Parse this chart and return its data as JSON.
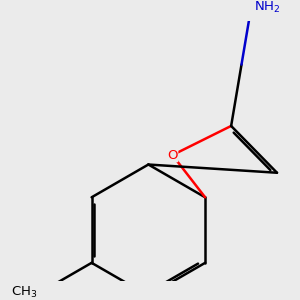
{
  "background_color": "#ebebeb",
  "bond_color": "#000000",
  "oxygen_color": "#ff0000",
  "nitrogen_color": "#0000cc",
  "line_width": 1.8,
  "figsize": [
    3.0,
    3.0
  ],
  "dpi": 100
}
